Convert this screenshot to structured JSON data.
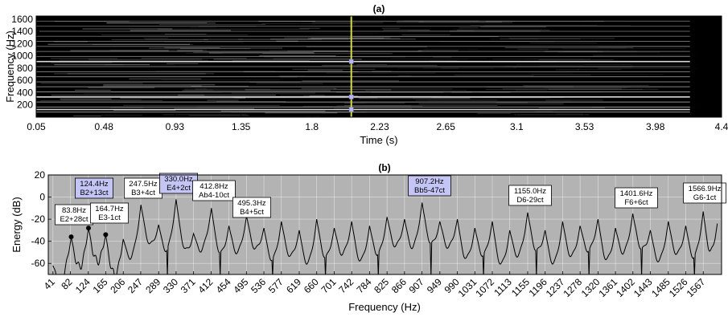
{
  "chart_data": [
    {
      "type": "heatmap",
      "title": "(a)",
      "xlabel": "Time (s)",
      "ylabel": "Frequency (Hz)",
      "xlim": [
        0.05,
        4.4
      ],
      "ylim": [
        0,
        1650
      ],
      "x_ticks": [
        "0.05",
        "0.48",
        "0.93",
        "1.35",
        "1.8",
        "2.23",
        "2.65",
        "3.1",
        "3.53",
        "3.98",
        "4.4"
      ],
      "y_ticks": [
        200,
        400,
        600,
        800,
        1000,
        1200,
        1400,
        1600
      ],
      "cursor_time": 2.05,
      "cursor_color": "#d9d93a",
      "marked_frequencies": [
        124.4,
        330.0,
        907.2
      ],
      "harmonic_lines_hz": [
        83.8,
        124.4,
        164.7,
        247.5,
        330.0,
        412.8,
        495.3,
        577,
        660,
        742,
        825,
        907.2,
        990,
        1072,
        1155.0,
        1237,
        1320,
        1401.6,
        1485,
        1566.9
      ],
      "colormap": "gray"
    },
    {
      "type": "line",
      "title": "(b)",
      "xlabel": "Frequency (Hz)",
      "ylabel": "Energy (dB)",
      "ylim": [
        -70,
        20
      ],
      "y_ticks": [
        -60,
        -40,
        -20,
        0,
        20
      ],
      "xlim": [
        30,
        1610
      ],
      "x_ticks": [
        "41",
        "82",
        "124",
        "165",
        "206",
        "247",
        "289",
        "330",
        "371",
        "412",
        "454",
        "495",
        "536",
        "577",
        "619",
        "660",
        "701",
        "742",
        "784",
        "825",
        "866",
        "907",
        "949",
        "990",
        "1031",
        "1072",
        "1113",
        "1155",
        "1196",
        "1237",
        "1278",
        "1320",
        "1361",
        "1402",
        "1443",
        "1485",
        "1526",
        "1567"
      ],
      "background": "#b3b3b3",
      "peaks": [
        {
          "freq": 83.8,
          "db": -36,
          "line1": "83.8Hz",
          "line2": "E2+28ct",
          "highlight": false,
          "dot": true
        },
        {
          "freq": 124.4,
          "db": -28,
          "line1": "124.4Hz",
          "line2": "B2+13ct",
          "highlight": true,
          "dot": true
        },
        {
          "freq": 164.7,
          "db": -34,
          "line1": "164.7Hz",
          "line2": "E3-1ct",
          "highlight": false,
          "dot": true
        },
        {
          "freq": 247.5,
          "db": -7,
          "line1": "247.5Hz",
          "line2": "B3+4ct",
          "highlight": false,
          "dot": false
        },
        {
          "freq": 330.0,
          "db": -2,
          "line1": "330.0Hz",
          "line2": "E4+2ct",
          "highlight": true,
          "dot": false
        },
        {
          "freq": 412.8,
          "db": -10,
          "line1": "412.8Hz",
          "line2": "Ab4-10ct",
          "highlight": false,
          "dot": false
        },
        {
          "freq": 495.3,
          "db": -17,
          "line1": "495.3Hz",
          "line2": "B4+5ct",
          "highlight": false,
          "dot": false
        },
        {
          "freq": 907.2,
          "db": -5,
          "line1": "907.2Hz",
          "line2": "Bb5-47ct",
          "highlight": true,
          "dot": false
        },
        {
          "freq": 1155.0,
          "db": -14,
          "line1": "1155.0Hz",
          "line2": "D6-29ct",
          "highlight": false,
          "dot": false
        },
        {
          "freq": 1401.6,
          "db": -15,
          "line1": "1401.6Hz",
          "line2": "F6+6ct",
          "highlight": false,
          "dot": false
        },
        {
          "freq": 1566.9,
          "db": -13,
          "line1": "1566.9Hz",
          "line2": "G6-1ct",
          "highlight": false,
          "dot": false
        }
      ],
      "spectrum_peaks_db": [
        {
          "freq": 41,
          "db": -62
        },
        {
          "freq": 83.8,
          "db": -36
        },
        {
          "freq": 124.4,
          "db": -28
        },
        {
          "freq": 164.7,
          "db": -34
        },
        {
          "freq": 206,
          "db": -38
        },
        {
          "freq": 247.5,
          "db": -7
        },
        {
          "freq": 289,
          "db": -25
        },
        {
          "freq": 330.0,
          "db": -2
        },
        {
          "freq": 371,
          "db": -33
        },
        {
          "freq": 412.8,
          "db": -10
        },
        {
          "freq": 454,
          "db": -26
        },
        {
          "freq": 495.3,
          "db": -17
        },
        {
          "freq": 536,
          "db": -28
        },
        {
          "freq": 577,
          "db": -22
        },
        {
          "freq": 619,
          "db": -30
        },
        {
          "freq": 660,
          "db": -20
        },
        {
          "freq": 701,
          "db": -28
        },
        {
          "freq": 742,
          "db": -22
        },
        {
          "freq": 784,
          "db": -26
        },
        {
          "freq": 825,
          "db": -18
        },
        {
          "freq": 866,
          "db": -20
        },
        {
          "freq": 907.2,
          "db": -5
        },
        {
          "freq": 949,
          "db": -22
        },
        {
          "freq": 990,
          "db": -20
        },
        {
          "freq": 1031,
          "db": -28
        },
        {
          "freq": 1072,
          "db": -22
        },
        {
          "freq": 1113,
          "db": -30
        },
        {
          "freq": 1155.0,
          "db": -14
        },
        {
          "freq": 1196,
          "db": -30
        },
        {
          "freq": 1237,
          "db": -22
        },
        {
          "freq": 1278,
          "db": -26
        },
        {
          "freq": 1320,
          "db": -20
        },
        {
          "freq": 1361,
          "db": -28
        },
        {
          "freq": 1401.6,
          "db": -15
        },
        {
          "freq": 1443,
          "db": -30
        },
        {
          "freq": 1485,
          "db": -22
        },
        {
          "freq": 1526,
          "db": -26
        },
        {
          "freq": 1566.9,
          "db": -13
        },
        {
          "freq": 1600,
          "db": -24
        }
      ],
      "highlight_color": "#c5c5f5"
    }
  ]
}
